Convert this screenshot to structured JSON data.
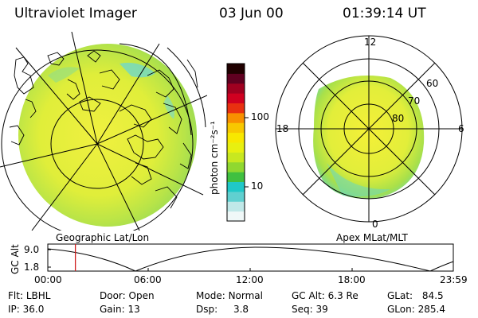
{
  "header": {
    "title": "Ultraviolet Imager",
    "date": "03 Jun 00",
    "time": "01:39:14 UT"
  },
  "left_map": {
    "caption": "Geographic Lat/Lon"
  },
  "right_map": {
    "caption": "Apex MLat/MLT",
    "mlt_labels": {
      "top": "12",
      "left": "18",
      "right": "6",
      "bottom": "0"
    },
    "lat_labels": [
      "60",
      "70",
      "80"
    ]
  },
  "colorbar": {
    "unit_label": "photon cm⁻²s⁻¹",
    "ticks": [
      "100",
      "10"
    ],
    "colors": [
      "#f0f8f8",
      "#c0e8e8",
      "#60d0d0",
      "#20c8c8",
      "#40c040",
      "#90d830",
      "#c8e820",
      "#e8f010",
      "#f8e800",
      "#f8c800",
      "#f89000",
      "#e83010",
      "#d00020",
      "#a00020",
      "#600020",
      "#200000"
    ]
  },
  "alt_plot": {
    "ylabel": "GC Alt",
    "y_ticks": [
      "9.0",
      "1.8"
    ],
    "x_ticks": [
      "00:00",
      "06:00",
      "12:00",
      "18:00",
      "23:59"
    ],
    "current_time_fraction": 0.068
  },
  "info": {
    "row1": [
      {
        "label": "Flt:",
        "value": "LBHL"
      },
      {
        "label": "Door:",
        "value": "Open"
      },
      {
        "label": "Mode:",
        "value": "Normal"
      },
      {
        "label": "GC Alt:",
        "value": "6.3 Re"
      },
      {
        "label": "GLat:",
        "value": "84.5"
      }
    ],
    "row2": [
      {
        "label": "IP:",
        "value": "36.0"
      },
      {
        "label": "Gain:",
        "value": "13"
      },
      {
        "label": "Dsp:",
        "value": "3.8"
      },
      {
        "label": "Seq:",
        "value": "39"
      },
      {
        "label": "GLon:",
        "value": "285.4"
      }
    ]
  },
  "palette": {
    "image_yellow": "#e8f038",
    "image_green": "#a8e048",
    "cyan": "#60d8d0",
    "time_marker": "#d02020"
  }
}
